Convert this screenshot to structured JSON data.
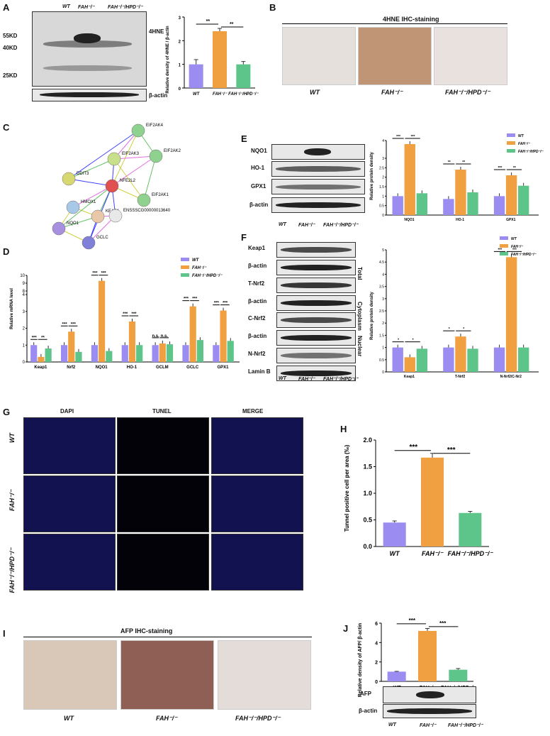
{
  "panels": {
    "A": "A",
    "B": "B",
    "C": "C",
    "D": "D",
    "E": "E",
    "F": "F",
    "G": "G",
    "H": "H",
    "I": "I",
    "J": "J"
  },
  "groups": {
    "wt": "WT",
    "fah": "FAH⁻/⁻",
    "fah_hpd": "FAH⁻/⁻/HPD⁻/⁻"
  },
  "colors": {
    "wt": "#9a8cf0",
    "fah": "#f0a040",
    "fah_hpd": "#5ec58a"
  },
  "panelA": {
    "markers": [
      "55KD",
      "40KD",
      "25KD"
    ],
    "protein": "4HNE",
    "loading": "β-actin",
    "ylabel": "Relative density of 4HNE / β-actin",
    "sig": [
      "**",
      "**"
    ]
  },
  "panelB": {
    "title": "4HNE  IHC-staining"
  },
  "panelC": {
    "nodes": [
      "EIF2AK4",
      "EIF2AK3",
      "EIF2AK2",
      "DDIT3",
      "NFE2L2",
      "EIF2AK1",
      "HMOX1",
      "KEAP1",
      "ENSSSCG00000013640",
      "NQO1",
      "GCLC"
    ]
  },
  "panelD": {
    "ylabel": "Relative  mRNA level",
    "sig": [
      "***",
      "**",
      "***",
      "***",
      "***",
      "***",
      "***",
      "***",
      "n.s.",
      "n.s.",
      "***",
      "***",
      "***",
      "***"
    ]
  },
  "panelE": {
    "rows": [
      "NQO1",
      "HO-1",
      "GPX1",
      "β-actin"
    ],
    "ylabel": "Relative protein density",
    "sig": [
      "***",
      "***",
      "**",
      "**",
      "***",
      "**"
    ]
  },
  "panelF": {
    "rows": [
      "Keap1",
      "β-actin",
      "T-Nrf2",
      "β-actin",
      "C-Nrf2",
      "β-actin",
      "N-Nrf2",
      "Lamin B"
    ],
    "sections": [
      "Total",
      "Cytoplasm",
      "Nuclear"
    ],
    "ylabel": "Relative  protein density",
    "sig": [
      "*",
      "*",
      "*",
      "*",
      "***",
      "***"
    ]
  },
  "panelG": {
    "cols": [
      "DAPI",
      "TUNEL",
      "MERGE"
    ]
  },
  "panelH": {
    "ylabel": "Tunnel positive cell per area (‰)",
    "sig": [
      "***",
      "***"
    ]
  },
  "panelI": {
    "title": "AFP  IHC-staining"
  },
  "panelJ": {
    "ylabel": "Relative density of AFP/ β-actin",
    "rows": [
      "AFP",
      "β-actin"
    ],
    "sig": [
      "***",
      "***"
    ]
  },
  "chart_data": [
    {
      "panel": "A",
      "type": "bar",
      "categories": [
        "WT",
        "FAH⁻/⁻",
        "FAH⁻/⁻/HPD⁻/⁻"
      ],
      "values": [
        1.0,
        2.4,
        1.0
      ],
      "errors": [
        0.2,
        0.12,
        0.12
      ],
      "ylim": [
        0,
        3
      ],
      "ticks": [
        0,
        1,
        2,
        3
      ]
    },
    {
      "panel": "D",
      "type": "bar",
      "categories": [
        "Keap1",
        "Nrf2",
        "NQO1",
        "HO-1",
        "GCLM",
        "GCLC",
        "GPX1"
      ],
      "series": [
        {
          "name": "WT",
          "values": [
            1,
            1,
            1,
            1,
            1,
            1,
            1
          ]
        },
        {
          "name": "FAH⁻/⁻",
          "values": [
            0.3,
            1.8,
            9.3,
            2.4,
            1.1,
            3.3,
            3.05
          ]
        },
        {
          "name": "FAH⁻/⁻/HPD⁻/⁻",
          "values": [
            0.8,
            0.6,
            0.65,
            1.0,
            1.05,
            1.3,
            1.25
          ]
        }
      ],
      "ylim": [
        0,
        10
      ],
      "ticks": [
        0,
        1,
        2,
        3,
        4,
        8,
        9,
        10
      ]
    },
    {
      "panel": "E",
      "type": "bar",
      "categories": [
        "NQO1",
        "HO-1",
        "GPX1"
      ],
      "series": [
        {
          "name": "WT",
          "values": [
            1.0,
            0.85,
            1.0
          ]
        },
        {
          "name": "FAH⁻/⁻",
          "values": [
            3.8,
            2.4,
            2.1
          ]
        },
        {
          "name": "FAH⁻/⁻/HPD⁻/⁻",
          "values": [
            1.15,
            1.2,
            1.55
          ]
        }
      ],
      "ticks": [
        0,
        0.5,
        1.0,
        1.5,
        2.0,
        2.5,
        3.0,
        4.0
      ]
    },
    {
      "panel": "F",
      "type": "bar",
      "categories": [
        "Keap1",
        "T-Nrf2",
        "N-Nrf2/C-Nr2"
      ],
      "series": [
        {
          "name": "WT",
          "values": [
            1.0,
            1.0,
            1.0
          ]
        },
        {
          "name": "FAH⁻/⁻",
          "values": [
            0.6,
            1.45,
            4.7
          ]
        },
        {
          "name": "FAH⁻/⁻/HPD⁻/⁻",
          "values": [
            0.95,
            0.95,
            1.0
          ]
        }
      ],
      "ticks": [
        0,
        0.5,
        1.0,
        1.5,
        2.0,
        2.5,
        3.0,
        3.5,
        4.0,
        4.5,
        5.0
      ]
    },
    {
      "panel": "H",
      "type": "bar",
      "categories": [
        "WT",
        "FAH⁻/⁻",
        "FAH⁻/⁻/HPD⁻/⁻"
      ],
      "values": [
        0.45,
        1.67,
        0.63
      ],
      "errors": [
        0.03,
        0.08,
        0.03
      ],
      "ylim": [
        0,
        2.0
      ],
      "ticks": [
        0.0,
        0.5,
        1.0,
        1.5,
        2.0
      ]
    },
    {
      "panel": "J",
      "type": "bar",
      "categories": [
        "WT",
        "FAH⁻/⁻",
        "FAH⁻/⁻/HPD⁻/⁻"
      ],
      "values": [
        1.0,
        5.2,
        1.2
      ],
      "errors": [
        0.03,
        0.25,
        0.12
      ],
      "ylim": [
        0,
        6
      ],
      "ticks": [
        0,
        2,
        4,
        6
      ]
    }
  ]
}
